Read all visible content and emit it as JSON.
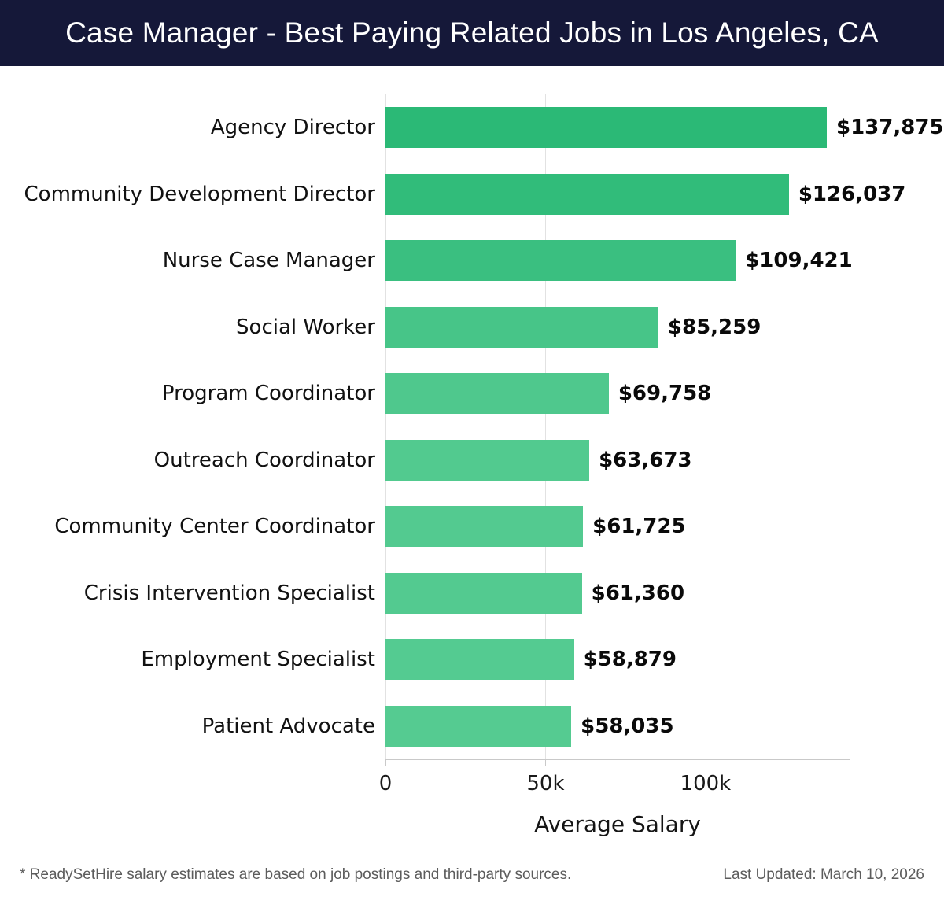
{
  "header": {
    "title": "Case Manager - Best Paying Related Jobs in Los Angeles, CA",
    "bg_color": "#151839",
    "text_color": "#ffffff"
  },
  "chart_data": {
    "type": "bar",
    "orientation": "horizontal",
    "title": "Case Manager - Best Paying Related Jobs in Los Angeles, CA",
    "categories": [
      "Agency Director",
      "Community Development Director",
      "Nurse Case Manager",
      "Social Worker",
      "Program Coordinator",
      "Outreach Coordinator",
      "Community Center Coordinator",
      "Crisis Intervention Specialist",
      "Employment Specialist",
      "Patient Advocate"
    ],
    "values": [
      137875,
      126037,
      109421,
      85259,
      69758,
      63673,
      61725,
      61360,
      58879,
      58035
    ],
    "value_labels": [
      "$137,875",
      "$126,037",
      "$109,421",
      "$85,259",
      "$69,758",
      "$63,673",
      "$61,725",
      "$61,360",
      "$58,879",
      "$58,035"
    ],
    "bar_colors": [
      "#2bb976",
      "#31bc7a",
      "#3abf80",
      "#47c588",
      "#4fc88d",
      "#52ca8f",
      "#53ca90",
      "#53ca90",
      "#54cb91",
      "#55cb91"
    ],
    "xlabel": "Average Salary",
    "xlim": [
      0,
      145000
    ],
    "x_ticks": [
      {
        "value": 0,
        "label": "0"
      },
      {
        "value": 50000,
        "label": "50k"
      },
      {
        "value": 100000,
        "label": "100k"
      }
    ],
    "grid": true,
    "gridline_color": "#e2e2e2",
    "legend": null
  },
  "footer": {
    "note": "* ReadySetHire salary estimates are based on job postings and third-party sources.",
    "last_updated": "Last Updated: March 10, 2026"
  }
}
